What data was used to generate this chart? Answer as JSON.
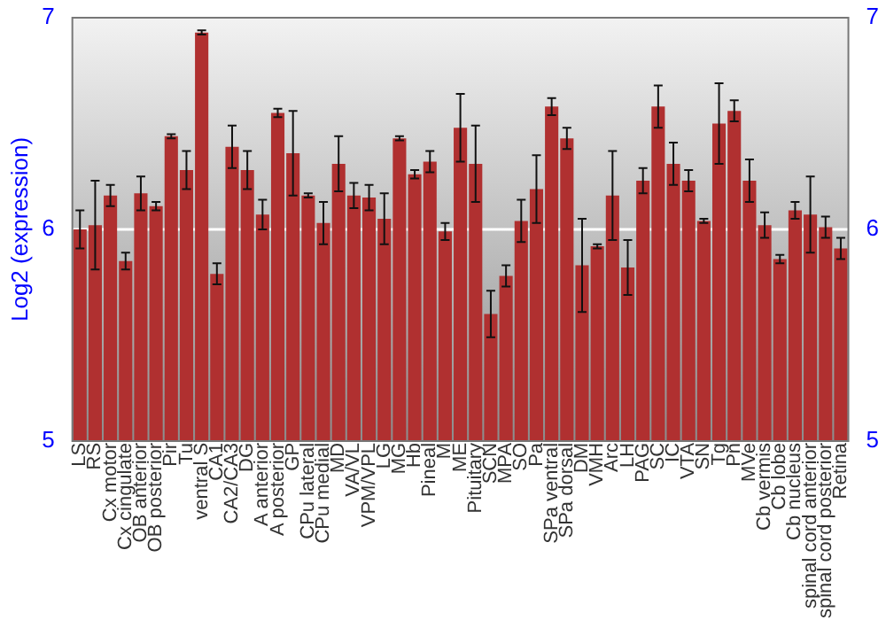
{
  "chart_data": {
    "type": "bar",
    "ylabel": "Log2 (expression)",
    "categories": [
      "LS",
      "RS",
      "Cx motor",
      "Cx cingulate",
      "OB anterior",
      "OB posterior",
      "Pir",
      "Tu",
      "ventral S",
      "CA1",
      "CA2/CA3",
      "DG",
      "A anterior",
      "A posterior",
      "GP",
      "CPu lateral",
      "CPu medial",
      "MD",
      "VA/VL",
      "VPM/VPL",
      "LG",
      "MG",
      "Hb",
      "Pineal",
      "M",
      "ME",
      "Pituitary",
      "SCN",
      "MPA",
      "SO",
      "Pa",
      "SPa ventral",
      "SPa dorsal",
      "DM",
      "VMH",
      "Arc",
      "LH",
      "PAG",
      "SC",
      "IC",
      "VTA",
      "SN",
      "Tg",
      "Pn",
      "MVe",
      "Cb vermis",
      "Cb lobe",
      "Cb nucleus",
      "spinal cord anterior",
      "spinal cord posterior",
      "Retina"
    ],
    "values": [
      6.0,
      6.02,
      6.16,
      5.85,
      6.17,
      6.11,
      6.44,
      6.28,
      6.93,
      5.79,
      6.39,
      6.28,
      6.07,
      6.55,
      6.36,
      6.16,
      6.03,
      6.31,
      6.16,
      6.15,
      6.05,
      6.43,
      6.26,
      6.32,
      5.99,
      6.48,
      6.31,
      5.6,
      5.78,
      6.04,
      6.19,
      6.58,
      6.43,
      5.83,
      5.92,
      6.16,
      5.82,
      6.23,
      6.58,
      6.31,
      6.23,
      6.04,
      6.5,
      6.56,
      6.23,
      6.02,
      5.86,
      6.09,
      6.07,
      6.01,
      5.91
    ],
    "errors": [
      0.09,
      0.21,
      0.05,
      0.04,
      0.08,
      0.02,
      0.01,
      0.09,
      0.01,
      0.05,
      0.1,
      0.09,
      0.07,
      0.02,
      0.2,
      0.01,
      0.1,
      0.13,
      0.06,
      0.06,
      0.12,
      0.01,
      0.02,
      0.05,
      0.04,
      0.16,
      0.18,
      0.11,
      0.05,
      0.1,
      0.16,
      0.04,
      0.05,
      0.22,
      0.01,
      0.21,
      0.13,
      0.06,
      0.1,
      0.1,
      0.05,
      0.01,
      0.19,
      0.05,
      0.1,
      0.06,
      0.02,
      0.04,
      0.18,
      0.05,
      0.05
    ],
    "color": "#b03030",
    "ylim": [
      5,
      7
    ],
    "yticks": [
      5,
      6,
      7
    ],
    "y2lim": [
      5,
      7
    ],
    "y2ticks": [
      5,
      6,
      7
    ],
    "grid": "y",
    "legend": false
  }
}
